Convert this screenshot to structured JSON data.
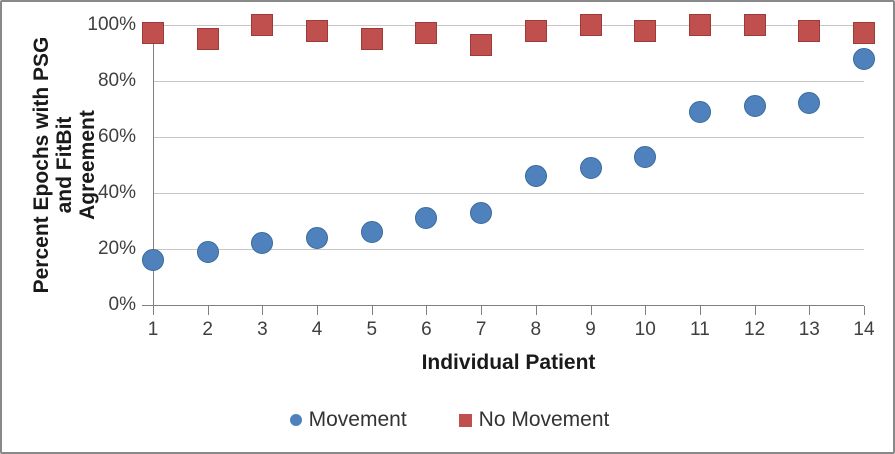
{
  "chart_data": {
    "type": "scatter",
    "title": "",
    "xlabel": "Individual Patient",
    "ylabel": "Percent Epochs with PSG and FitBit Agreement",
    "ylabel_lines": [
      "Percent Epochs with PSG and FitBit",
      "Agreement"
    ],
    "x": [
      1,
      2,
      3,
      4,
      5,
      6,
      7,
      8,
      9,
      10,
      11,
      12,
      13,
      14
    ],
    "series": [
      {
        "name": "Movement",
        "marker": "circle",
        "color": "#4F81BD",
        "border_color": "#3a6a9b",
        "values": [
          16,
          19,
          22,
          24,
          26,
          31,
          33,
          46,
          49,
          53,
          69,
          71,
          72,
          88
        ]
      },
      {
        "name": "No Movement",
        "marker": "square",
        "color": "#C0504D",
        "border_color": "#9e3b39",
        "values": [
          97,
          95,
          100,
          98,
          95,
          97,
          93,
          98,
          100,
          98,
          100,
          100,
          98,
          97
        ]
      }
    ],
    "ylim": [
      0,
      100
    ],
    "yticks": [
      0,
      20,
      40,
      60,
      80,
      100
    ],
    "ytick_labels": [
      "0%",
      "20%",
      "40%",
      "60%",
      "80%",
      "100%"
    ],
    "grid": "horizontal",
    "legend_position": "bottom"
  },
  "colors": {
    "gridline": "#c6c6c6",
    "axis": "#808080",
    "tick_text": "#3f3f3f",
    "title_text": "#1a1a1a",
    "frame_border": "#898989",
    "background": "#ffffff"
  }
}
